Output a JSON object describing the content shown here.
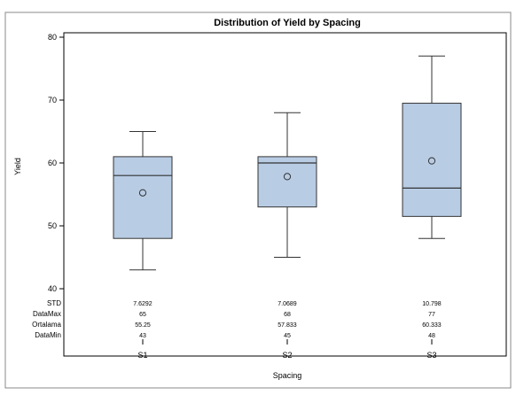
{
  "chart_data": {
    "type": "box",
    "title": "Distribution of Yield by Spacing",
    "xlabel": "Spacing",
    "ylabel": "Yield",
    "ylim": [
      40,
      80
    ],
    "yticks": [
      40,
      50,
      60,
      70,
      80
    ],
    "categories": [
      "S1",
      "S2",
      "S3"
    ],
    "boxes": [
      {
        "category": "S1",
        "min": 43,
        "q1": 48,
        "median": 58,
        "q3": 61,
        "max": 65,
        "mean": 55.25
      },
      {
        "category": "S2",
        "min": 45,
        "q1": 53,
        "median": 60,
        "q3": 61,
        "max": 68,
        "mean": 57.833
      },
      {
        "category": "S3",
        "min": 48,
        "q1": 51.5,
        "median": 56,
        "q3": 69.5,
        "max": 77,
        "mean": 60.333
      }
    ],
    "stats_table": {
      "rows": [
        {
          "label": "STD",
          "values": [
            "7.6292",
            "7.0689",
            "10.798"
          ]
        },
        {
          "label": "DataMax",
          "values": [
            "65",
            "68",
            "77"
          ]
        },
        {
          "label": "Ortalama",
          "values": [
            "55.25",
            "57.833",
            "60.333"
          ]
        },
        {
          "label": "DataMin",
          "values": [
            "43",
            "45",
            "48"
          ]
        }
      ]
    },
    "box_fill": "#b8cce4",
    "box_stroke": "#333333",
    "grid": false,
    "legend": "none"
  }
}
